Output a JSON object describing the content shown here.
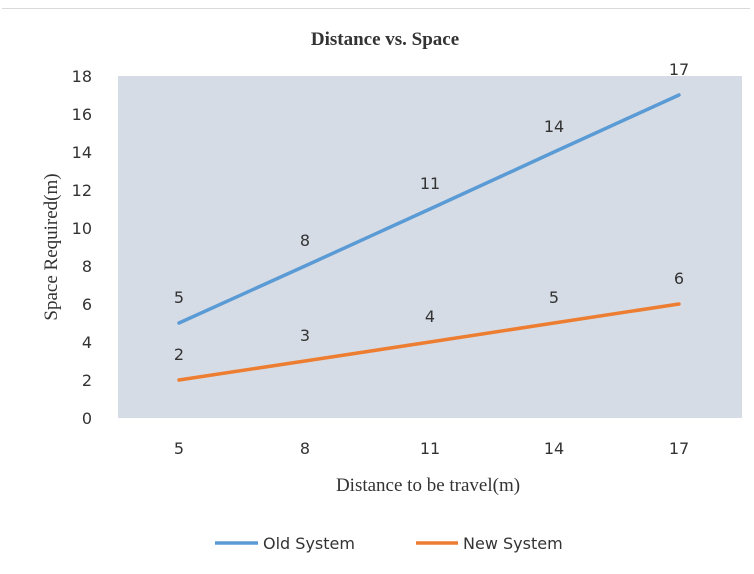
{
  "chart_data": {
    "type": "line",
    "title": "Distance vs. Space",
    "xlabel": "Distance to be travel(m)",
    "ylabel": "Space Required(m)",
    "categories": [
      "5",
      "8",
      "11",
      "14",
      "17"
    ],
    "ylim": [
      0,
      18
    ],
    "yticks": [
      "0",
      "2",
      "4",
      "6",
      "8",
      "10",
      "12",
      "14",
      "16",
      "18"
    ],
    "grid": false,
    "legend_position": "bottom",
    "plot_background": "#d6dce5",
    "series": [
      {
        "name": "Old System",
        "values": [
          5,
          8,
          11,
          14,
          17
        ],
        "color": "#5b9bd5"
      },
      {
        "name": "New System",
        "values": [
          2,
          3,
          4,
          5,
          6
        ],
        "color": "#ed7d31"
      }
    ]
  }
}
